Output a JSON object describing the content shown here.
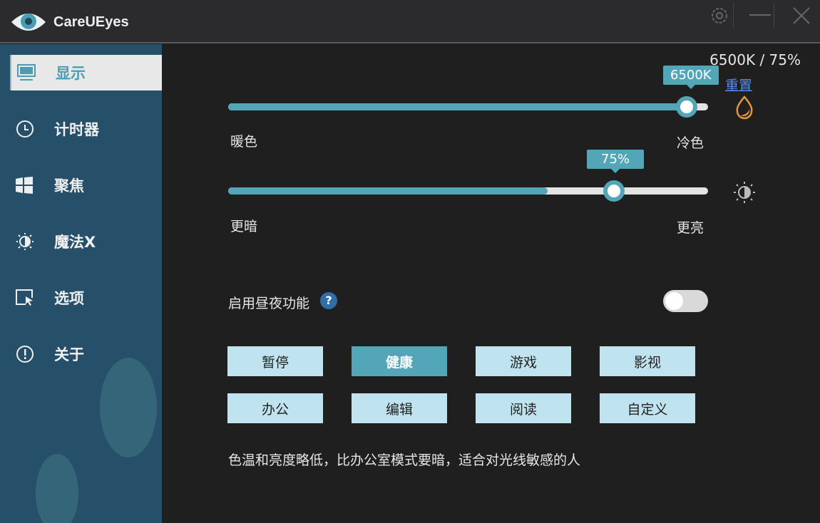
{
  "app": {
    "title": "CareUEyes"
  },
  "titlebar": {
    "icons": [
      "settings-icon",
      "minimize-icon",
      "close-icon"
    ]
  },
  "sidebar": {
    "items": [
      {
        "label": "显示",
        "icon": "monitor-icon",
        "active": true
      },
      {
        "label": "计时器",
        "icon": "clock-icon"
      },
      {
        "label": "聚焦",
        "icon": "windows-icon"
      },
      {
        "label": "魔法X",
        "icon": "sun-moon-icon"
      },
      {
        "label": "选项",
        "icon": "cursor-window-icon"
      },
      {
        "label": "关于",
        "icon": "info-icon"
      }
    ]
  },
  "display": {
    "status": "6500K / 75%",
    "reset_label": "重置",
    "temperature": {
      "value": "6500K",
      "min_label": "暖色",
      "max_label": "冷色",
      "fill_percent": 97
    },
    "brightness": {
      "value": "75%",
      "min_label": "更暗",
      "max_label": "更亮",
      "fill_percent": 67
    },
    "daynight": {
      "label": "启用昼夜功能",
      "help": "?",
      "enabled": false
    },
    "modes": [
      {
        "label": "暂停"
      },
      {
        "label": "健康",
        "active": true
      },
      {
        "label": "游戏"
      },
      {
        "label": "影视"
      },
      {
        "label": "办公"
      },
      {
        "label": "编辑"
      },
      {
        "label": "阅读"
      },
      {
        "label": "自定义"
      }
    ],
    "description": "色温和亮度略低，比办公室模式要暗，适合对光线敏感的人"
  },
  "colors": {
    "accent": "#52a6b8",
    "sidebar": "#26506a",
    "mode_button": "#bfe3ef",
    "link": "#5b8cf0",
    "drop_icon": "#e0963a"
  }
}
